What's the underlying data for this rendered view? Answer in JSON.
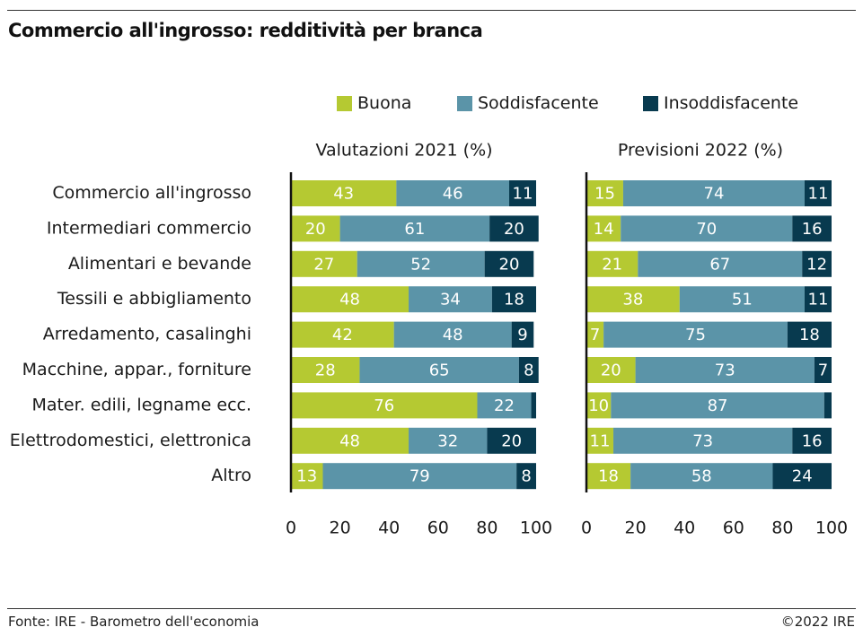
{
  "title": "Commercio all'ingrosso: redditività per branca",
  "source": "Fonte: IRE - Barometro dell'economia",
  "copyright": "©2022 IRE",
  "colors": {
    "Buona": "#b5c932",
    "Soddisfacente": "#5b94a8",
    "Insoddisfacente": "#083a4f"
  },
  "chart_data": [
    {
      "type": "bar",
      "orientation": "horizontal",
      "stacked": true,
      "title": "Valutazioni 2021 (%)",
      "categories": [
        "Commercio all'ingrosso",
        "Intermediari commercio",
        "Alimentari e bevande",
        "Tessili e abbigliamento",
        "Arredamento, casalinghi",
        "Macchine, appar., forniture",
        "Mater. edili, legname ecc.",
        "Elettrodomestici, elettronica",
        "Altro"
      ],
      "series": [
        {
          "name": "Buona",
          "values": [
            43,
            20,
            27,
            48,
            42,
            28,
            76,
            48,
            13
          ]
        },
        {
          "name": "Soddisfacente",
          "values": [
            46,
            61,
            52,
            34,
            48,
            65,
            22,
            32,
            79
          ]
        },
        {
          "name": "Insoddisfacente",
          "values": [
            11,
            20,
            20,
            18,
            9,
            8,
            2,
            20,
            8
          ]
        }
      ],
      "xlim": [
        0,
        100
      ],
      "xticks": [
        "0",
        "20",
        "40",
        "60",
        "80",
        "100"
      ],
      "legend": "top"
    },
    {
      "type": "bar",
      "orientation": "horizontal",
      "stacked": true,
      "title": "Previsioni 2022 (%)",
      "categories": [
        "Commercio all'ingrosso",
        "Intermediari commercio",
        "Alimentari e bevande",
        "Tessili e abbigliamento",
        "Arredamento, casalinghi",
        "Macchine, appar., forniture",
        "Mater. edili, legname ecc.",
        "Elettrodomestici, elettronica",
        "Altro"
      ],
      "series": [
        {
          "name": "Buona",
          "values": [
            15,
            14,
            21,
            38,
            7,
            20,
            10,
            11,
            18
          ]
        },
        {
          "name": "Soddisfacente",
          "values": [
            74,
            70,
            67,
            51,
            75,
            73,
            87,
            73,
            58
          ]
        },
        {
          "name": "Insoddisfacente",
          "values": [
            11,
            16,
            12,
            11,
            18,
            7,
            3,
            16,
            24
          ]
        }
      ],
      "xlim": [
        0,
        100
      ],
      "xticks": [
        "0",
        "20",
        "40",
        "60",
        "80",
        "100"
      ],
      "legend": "top"
    }
  ]
}
